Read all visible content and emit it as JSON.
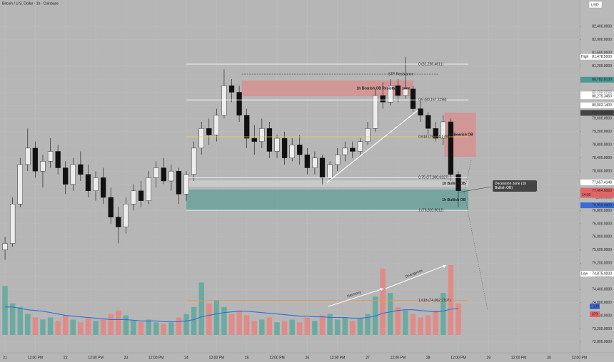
{
  "header": {
    "title": "Bitcoin / U.S. Dollar · 1h · Coinbase",
    "currency": "USD"
  },
  "chart_data": [
    {
      "type": "candlestick",
      "x": [
        0,
        3,
        6,
        9,
        12,
        15,
        18,
        21,
        24,
        27,
        30,
        33,
        36,
        39,
        42,
        45,
        48,
        51,
        54,
        57,
        60,
        63,
        66,
        69,
        72,
        75,
        78,
        81,
        84,
        87,
        90,
        93,
        96,
        99,
        102,
        105,
        108,
        111,
        114,
        117,
        120,
        123,
        126,
        129,
        132,
        135,
        138,
        141,
        144,
        147,
        150,
        153,
        156,
        159,
        162,
        165,
        168,
        171,
        174,
        177,
        180
      ],
      "open": [
        75600,
        75800,
        77000,
        78200,
        78700,
        78000,
        78300,
        78600,
        78100,
        77600,
        78200,
        77900,
        77400,
        77800,
        77200,
        76600,
        76300,
        77000,
        77400,
        77100,
        77800,
        78100,
        77700,
        78000,
        77300,
        77900,
        78700,
        79300,
        79100,
        79700,
        80600,
        80400,
        79700,
        79000,
        78900,
        79300,
        78600,
        79000,
        78400,
        78800,
        78500,
        78100,
        78400,
        77800,
        78200,
        78500,
        78700,
        78600,
        78900,
        79300,
        80300,
        80100,
        80600,
        80300,
        80500,
        79900,
        79700,
        79300,
        79000,
        79500,
        77900
      ],
      "high": [
        76000,
        77200,
        78400,
        79300,
        78900,
        78500,
        79000,
        78800,
        78300,
        78400,
        78600,
        78200,
        78000,
        78100,
        77500,
        76900,
        77200,
        77600,
        77700,
        78000,
        78300,
        78400,
        78200,
        78100,
        78000,
        78900,
        79500,
        79600,
        79900,
        81100,
        80800,
        80600,
        79900,
        79400,
        79600,
        79500,
        79100,
        79200,
        79000,
        79100,
        78700,
        78600,
        78500,
        78300,
        78700,
        78900,
        78900,
        79000,
        79500,
        80500,
        80700,
        80800,
        80800,
        81478.5,
        80600,
        80200,
        79800,
        79500,
        79700,
        79600,
        78000
      ],
      "low": [
        75300,
        75700,
        76900,
        78000,
        77800,
        77500,
        78100,
        77900,
        77300,
        77400,
        77700,
        77200,
        77100,
        77000,
        76400,
        75800,
        76100,
        76800,
        76900,
        77000,
        77500,
        77600,
        77400,
        77000,
        77100,
        77700,
        78500,
        78800,
        78900,
        79600,
        80100,
        79500,
        78700,
        78500,
        78700,
        78400,
        78400,
        78200,
        78300,
        78200,
        77900,
        77900,
        77600,
        77700,
        78000,
        78300,
        78400,
        78500,
        78800,
        79200,
        79900,
        80000,
        80100,
        80200,
        79800,
        79500,
        79100,
        78900,
        78800,
        77700,
        76900
      ],
      "close": [
        75800,
        77000,
        78200,
        78700,
        78000,
        78300,
        78600,
        78100,
        77600,
        78200,
        77900,
        77400,
        77800,
        77200,
        76600,
        76300,
        77000,
        77400,
        77100,
        77800,
        78100,
        77700,
        78000,
        77300,
        77900,
        78700,
        79300,
        79100,
        79700,
        80600,
        80400,
        79700,
        79000,
        78900,
        79300,
        78600,
        79000,
        78400,
        78800,
        78500,
        78100,
        78400,
        77800,
        78200,
        78500,
        78700,
        78600,
        78900,
        79300,
        80300,
        80100,
        80600,
        80300,
        80500,
        79900,
        79700,
        79300,
        79000,
        79500,
        77900,
        77404
      ],
      "up_color": "#ededed",
      "down_color": "#111111",
      "xlim": [
        -2,
        228.2
      ],
      "ylim": [
        72473,
        83208
      ],
      "grid": true,
      "xticks": [
        {
          "value": 0,
          "label": "21"
        },
        {
          "value": 12,
          "label": "12:00 PM"
        },
        {
          "value": 24,
          "label": "22"
        },
        {
          "value": 36,
          "label": "12:00 PM"
        },
        {
          "value": 48,
          "label": "23"
        },
        {
          "value": 60,
          "label": "12:00 PM"
        },
        {
          "value": 72,
          "label": "24"
        },
        {
          "value": 84,
          "label": "12:00 PM"
        },
        {
          "value": 96,
          "label": "25"
        },
        {
          "value": 108,
          "label": "12:00 PM"
        },
        {
          "value": 120,
          "label": "26"
        },
        {
          "value": 132,
          "label": "12:00 PM"
        },
        {
          "value": 144,
          "label": "27"
        },
        {
          "value": 156,
          "label": "12:00 PM"
        },
        {
          "value": 168,
          "label": "28"
        },
        {
          "value": 180,
          "label": "12:00 PM"
        },
        {
          "value": 192,
          "label": "29"
        },
        {
          "value": 204,
          "label": "12:00 PM"
        },
        {
          "value": 216,
          "label": "30"
        },
        {
          "value": 228,
          "label": "12:00 PM"
        }
      ],
      "yticks": [
        {
          "value": 72800,
          "label": "72,800.0000"
        },
        {
          "value": 73200,
          "label": "73,200.0000"
        },
        {
          "value": 73600,
          "label": "73,600.0000"
        },
        {
          "value": 74000,
          "label": "74,000.0000"
        },
        {
          "value": 74400,
          "label": "74,400.0000"
        },
        {
          "value": 74800,
          "label": "74,800.0000"
        },
        {
          "value": 75200,
          "label": "75,200.0000"
        },
        {
          "value": 75600,
          "label": "75,600.0000"
        },
        {
          "value": 76000,
          "label": "76,000.0000"
        },
        {
          "value": 76400,
          "label": "76,400.0000"
        },
        {
          "value": 76800,
          "label": "76,800.0000"
        },
        {
          "value": 77200,
          "label": "77,200.0000"
        },
        {
          "value": 77600,
          "label": "77,600.0000"
        },
        {
          "value": 78000,
          "label": "78,000.0000"
        },
        {
          "value": 78400,
          "label": "78,400.0000"
        },
        {
          "value": 78800,
          "label": "78,800.0000"
        },
        {
          "value": 79200,
          "label": "79,200.0000"
        },
        {
          "value": 79600,
          "label": "79,600.0000"
        },
        {
          "value": 80000,
          "label": "80,000.0000"
        },
        {
          "value": 80400,
          "label": "80,400.0000"
        },
        {
          "value": 80800,
          "label": "80,800.0000"
        },
        {
          "value": 81200,
          "label": "81,200.0000"
        },
        {
          "value": 81600,
          "label": "81,600.0000"
        },
        {
          "value": 82000,
          "label": "82,000.0000"
        },
        {
          "value": 82400,
          "label": "82,400.0000"
        }
      ],
      "zones": [
        {
          "label": "1h Bearish OB Resistance zone",
          "x": [
            94,
            162
          ],
          "y": [
            80280,
            80757
          ],
          "color": "#d98b8b"
        },
        {
          "label": "1h Bearish OB",
          "x": [
            174.5,
            187
          ],
          "y": [
            78437,
            79781
          ],
          "color": "#d98b8b"
        },
        {
          "label": "1h Bullish OB",
          "x": [
            72,
            184
          ],
          "y": [
            77526,
            77720
          ],
          "color": "#cfcfcf"
        },
        {
          "label": "1h Bullish OB",
          "x": [
            72,
            184
          ],
          "y": [
            76810,
            77439
          ],
          "color": "#5f9f95"
        }
      ],
      "levels": [
        {
          "label": "0 (81,256.4611)",
          "value": 81256.4611,
          "x": [
            72,
            184
          ],
          "color": "#ffffff"
        },
        {
          "label": "STF Resistance",
          "value": 80952,
          "x": [
            94,
            172
          ],
          "color": "#555555",
          "dash": true
        },
        {
          "label": "0.5 (80,167.3198)",
          "value": 80167.3198,
          "x": [
            72,
            184
          ],
          "color": "#ffffff"
        },
        {
          "label": "0.618 (79,044.1785)",
          "value": 79044.1785,
          "x": [
            72,
            184
          ],
          "color": "#f2d43a"
        },
        {
          "label": "0.75 (77,800.0327)",
          "value": 77800.0327,
          "x": [
            72,
            184
          ],
          "color": "#ffffff"
        },
        {
          "label": "1 (76,810.8012)",
          "value": 76810.8012,
          "x": [
            72,
            184
          ],
          "color": "#ffffff"
        },
        {
          "label": "1.618 (74,062.2107)",
          "value": 74062.2107,
          "x": [
            72,
            184
          ],
          "color": "#e8964a"
        }
      ],
      "price_labels": [
        {
          "tag": "High",
          "value": 81478.5,
          "label": "81,478.5000",
          "color": "#ffffff"
        },
        {
          "value": 80782.813,
          "label": "80,782.8130",
          "color": "#4a9a92"
        },
        {
          "value": 80338.0189,
          "label": "80,338.0189",
          "color": "#ffffff"
        },
        {
          "value": 80275.345,
          "label": "80,275.3450",
          "color": "#ffffff"
        },
        {
          "value": 80002.14,
          "label": "80,002.1400",
          "color": "#ffffff"
        },
        {
          "value": 79772.41,
          "label": "79,772.4100",
          "color": "#444444"
        },
        {
          "value": 77657.4148,
          "label": "77,657.4148",
          "color": "#ffffff"
        },
        {
          "value": 77404,
          "label": "77,404.0000",
          "color": "#e06666",
          "sub": "14:00"
        },
        {
          "value": 76959,
          "label": "76,959.0000",
          "color": "#3d6bd6"
        },
        {
          "tag": "Low",
          "value": 74875,
          "label": "74,875.0000",
          "color": "#ffffff"
        }
      ]
    },
    {
      "type": "bar",
      "values": [
        70,
        45,
        40,
        30,
        25,
        22,
        25,
        20,
        28,
        22,
        18,
        25,
        20,
        22,
        30,
        35,
        28,
        20,
        18,
        22,
        18,
        16,
        18,
        25,
        30,
        40,
        75,
        45,
        50,
        40,
        30,
        35,
        28,
        20,
        22,
        25,
        18,
        20,
        22,
        18,
        25,
        20,
        28,
        30,
        22,
        25,
        20,
        24,
        30,
        55,
        95,
        60,
        40,
        35,
        30,
        25,
        28,
        35,
        60,
        100,
        45
      ],
      "ma": [
        40,
        40,
        38,
        36,
        35,
        34,
        32,
        30,
        28,
        27,
        26,
        25,
        24,
        23,
        22,
        22,
        22,
        21,
        20,
        20,
        20,
        19,
        19,
        19,
        20,
        22,
        26,
        28,
        30,
        32,
        33,
        34,
        34,
        33,
        32,
        31,
        30,
        29,
        28,
        27,
        27,
        26,
        26,
        25,
        25,
        25,
        24,
        24,
        25,
        27,
        31,
        33,
        35,
        36,
        36,
        35,
        34,
        33,
        34,
        37,
        38
      ],
      "ylim": [
        0,
        100
      ],
      "up_color": "#5fa89e",
      "down_color": "#e8847f",
      "ma_color": "#2f6fd6",
      "axis_labels": [
        {
          "label": "1.13K",
          "color": "#3d6bd6"
        },
        {
          "label": "379",
          "color": "#e06666"
        }
      ]
    }
  ],
  "annotations": {
    "callout": "Decession zone (1h Bullish OB)",
    "rise": "Harmony",
    "divergence": "Divergence"
  }
}
